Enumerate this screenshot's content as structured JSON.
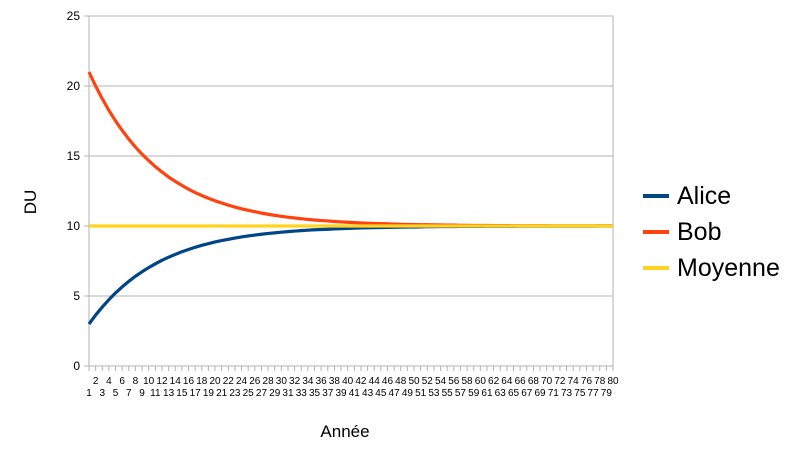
{
  "chart_data": {
    "type": "line",
    "title": "",
    "xlabel": "Année",
    "ylabel": "DU",
    "ylim": [
      0,
      25
    ],
    "yticks": [
      0,
      5,
      10,
      15,
      20,
      25
    ],
    "grid": "horizontal",
    "legend_position": "right",
    "x": [
      1,
      2,
      3,
      4,
      5,
      6,
      7,
      8,
      9,
      10,
      11,
      12,
      13,
      14,
      15,
      16,
      17,
      18,
      19,
      20,
      21,
      22,
      23,
      24,
      25,
      26,
      27,
      28,
      29,
      30,
      31,
      32,
      33,
      34,
      35,
      36,
      37,
      38,
      39,
      40,
      41,
      42,
      43,
      44,
      45,
      46,
      47,
      48,
      49,
      50,
      51,
      52,
      53,
      54,
      55,
      56,
      57,
      58,
      59,
      60,
      61,
      62,
      63,
      64,
      65,
      66,
      67,
      68,
      69,
      70,
      71,
      72,
      73,
      74,
      75,
      76,
      77,
      78,
      79,
      80
    ],
    "series": [
      {
        "name": "Alice",
        "color": "#004586",
        "values": [
          3.0,
          3.64,
          4.21,
          4.74,
          5.22,
          5.65,
          6.05,
          6.41,
          6.73,
          7.03,
          7.3,
          7.55,
          7.77,
          7.97,
          8.16,
          8.32,
          8.48,
          8.62,
          8.74,
          8.86,
          8.96,
          9.05,
          9.14,
          9.22,
          9.29,
          9.35,
          9.41,
          9.47,
          9.51,
          9.56,
          9.6,
          9.64,
          9.67,
          9.7,
          9.73,
          9.75,
          9.77,
          9.79,
          9.81,
          9.83,
          9.85,
          9.86,
          9.87,
          9.88,
          9.89,
          9.9,
          9.91,
          9.92,
          9.93,
          9.93,
          9.94,
          9.95,
          9.95,
          9.96,
          9.96,
          9.96,
          9.97,
          9.97,
          9.97,
          9.97,
          9.98,
          9.98,
          9.98,
          9.98,
          9.98,
          9.99,
          9.99,
          9.99,
          9.99,
          9.99,
          9.99,
          9.99,
          9.99,
          9.99,
          9.99,
          9.99,
          9.99,
          10.0,
          10.0,
          10.0
        ]
      },
      {
        "name": "Bob",
        "color": "#FF420E",
        "values": [
          21.0,
          20.0,
          19.09,
          18.26,
          17.51,
          16.83,
          16.21,
          15.64,
          15.13,
          14.67,
          14.24,
          13.86,
          13.5,
          13.19,
          12.9,
          12.63,
          12.39,
          12.18,
          11.98,
          11.8,
          11.64,
          11.49,
          11.35,
          11.23,
          11.12,
          11.02,
          10.92,
          10.84,
          10.76,
          10.69,
          10.63,
          10.57,
          10.52,
          10.47,
          10.43,
          10.39,
          10.36,
          10.32,
          10.29,
          10.27,
          10.24,
          10.22,
          10.2,
          10.18,
          10.17,
          10.15,
          10.14,
          10.12,
          10.11,
          10.1,
          10.09,
          10.09,
          10.08,
          10.07,
          10.06,
          10.06,
          10.05,
          10.05,
          10.04,
          10.04,
          10.04,
          10.03,
          10.03,
          10.03,
          10.02,
          10.02,
          10.02,
          10.02,
          10.02,
          10.02,
          10.01,
          10.01,
          10.01,
          10.01,
          10.01,
          10.01,
          10.01,
          10.01,
          10.01,
          10.01
        ]
      },
      {
        "name": "Moyenne",
        "color": "#FFD320",
        "values": [
          10,
          10,
          10,
          10,
          10,
          10,
          10,
          10,
          10,
          10,
          10,
          10,
          10,
          10,
          10,
          10,
          10,
          10,
          10,
          10,
          10,
          10,
          10,
          10,
          10,
          10,
          10,
          10,
          10,
          10,
          10,
          10,
          10,
          10,
          10,
          10,
          10,
          10,
          10,
          10,
          10,
          10,
          10,
          10,
          10,
          10,
          10,
          10,
          10,
          10,
          10,
          10,
          10,
          10,
          10,
          10,
          10,
          10,
          10,
          10,
          10,
          10,
          10,
          10,
          10,
          10,
          10,
          10,
          10,
          10,
          10,
          10,
          10,
          10,
          10,
          10,
          10,
          10,
          10,
          10
        ]
      }
    ],
    "colors": {
      "grid": "#B3B3B3",
      "text": "#000000",
      "background": "#FFFFFF"
    }
  }
}
